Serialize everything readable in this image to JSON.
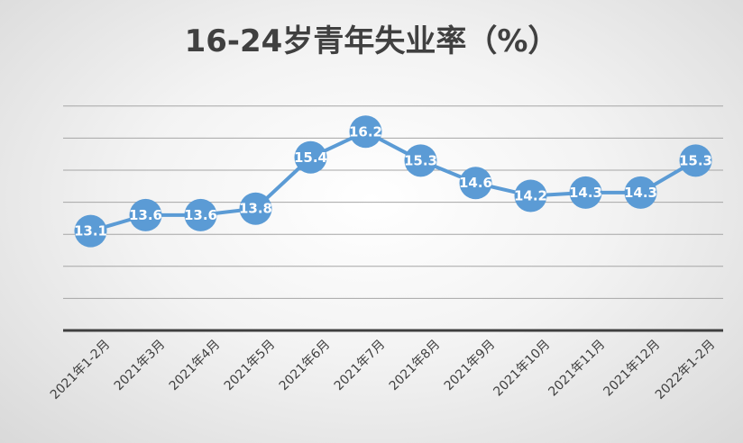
{
  "chart_data": {
    "type": "line",
    "title": "16-24岁青年失业率（%）",
    "xlabel": "",
    "ylabel": "",
    "categories": [
      "2021年1-2月",
      "2021年3月",
      "2021年4月",
      "2021年5月",
      "2021年6月",
      "2021年7月",
      "2021年8月",
      "2021年9月",
      "2021年10月",
      "2021年11月",
      "2021年12月",
      "2022年1-2月"
    ],
    "series": [
      {
        "values": [
          13.1,
          13.6,
          13.6,
          13.8,
          15.4,
          16.2,
          15.3,
          14.6,
          14.2,
          14.3,
          14.3,
          15.3
        ],
        "data_labels": [
          "13.1",
          "13.6",
          "13.6",
          "13.8",
          "15.4",
          "16.2",
          "15.3",
          "14.6",
          "14.2",
          "14.3",
          "14.3",
          "15.3"
        ]
      }
    ],
    "ylim": [
      10,
      17.5
    ],
    "grid": true,
    "legend": "none",
    "colors": {
      "series": "#5b9bd5",
      "label": "#ffffff",
      "axis": "#404040",
      "grid": "#a6a6a6"
    }
  }
}
